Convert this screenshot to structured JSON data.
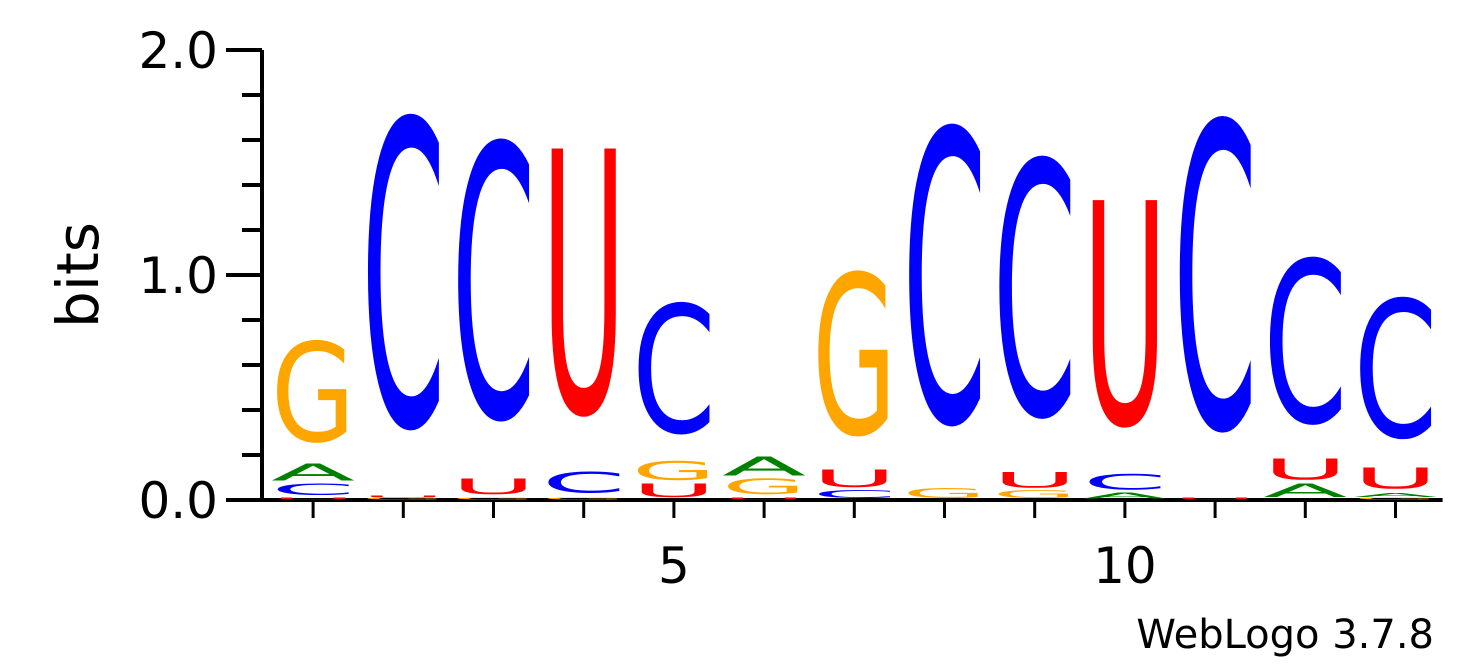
{
  "chart_data": {
    "type": "sequence_logo",
    "ylabel": "bits",
    "ylim": [
      0,
      2.0
    ],
    "y_ticks": [
      "0.0",
      "1.0",
      "2.0"
    ],
    "x_ticks": [
      {
        "position": 5,
        "label": "5"
      },
      {
        "position": 10,
        "label": "10"
      }
    ],
    "colors": {
      "A": "#008000",
      "C": "#0000ff",
      "G": "#ffa500",
      "U": "#ff0000"
    },
    "positions": [
      {
        "pos": 1,
        "stack": [
          {
            "l": "U",
            "h": 0.01
          },
          {
            "l": "C",
            "h": 0.06
          },
          {
            "l": "A",
            "h": 0.09
          },
          {
            "l": "G",
            "h": 0.52
          }
        ]
      },
      {
        "pos": 2,
        "stack": [
          {
            "l": "G",
            "h": 0.01
          },
          {
            "l": "U",
            "h": 0.01
          },
          {
            "l": "C",
            "h": 1.6
          }
        ]
      },
      {
        "pos": 3,
        "stack": [
          {
            "l": "G",
            "h": 0.01
          },
          {
            "l": "U",
            "h": 0.08
          },
          {
            "l": "C",
            "h": 1.43
          }
        ]
      },
      {
        "pos": 4,
        "stack": [
          {
            "l": "G",
            "h": 0.01
          },
          {
            "l": "C",
            "h": 0.11
          },
          {
            "l": "U",
            "h": 1.38
          }
        ]
      },
      {
        "pos": 5,
        "stack": [
          {
            "l": "U",
            "h": 0.07
          },
          {
            "l": "G",
            "h": 0.1
          },
          {
            "l": "C",
            "h": 0.67
          }
        ]
      },
      {
        "pos": 6,
        "stack": [
          {
            "l": "U",
            "h": 0.01
          },
          {
            "l": "G",
            "h": 0.08
          },
          {
            "l": "A",
            "h": 0.1
          }
        ]
      },
      {
        "pos": 7,
        "stack": [
          {
            "l": "C",
            "h": 0.04
          },
          {
            "l": "U",
            "h": 0.09
          },
          {
            "l": "G",
            "h": 0.84
          }
        ]
      },
      {
        "pos": 8,
        "stack": [
          {
            "l": "G",
            "h": 0.05
          },
          {
            "l": "C",
            "h": 1.53
          }
        ]
      },
      {
        "pos": 9,
        "stack": [
          {
            "l": "G",
            "h": 0.04
          },
          {
            "l": "U",
            "h": 0.08
          },
          {
            "l": "C",
            "h": 1.33
          }
        ]
      },
      {
        "pos": 10,
        "stack": [
          {
            "l": "A",
            "h": 0.03
          },
          {
            "l": "C",
            "h": 0.08
          },
          {
            "l": "U",
            "h": 1.17
          }
        ]
      },
      {
        "pos": 11,
        "stack": [
          {
            "l": "U",
            "h": 0.01
          },
          {
            "l": "C",
            "h": 1.6
          }
        ]
      },
      {
        "pos": 12,
        "stack": [
          {
            "l": "A",
            "h": 0.07
          },
          {
            "l": "U",
            "h": 0.11
          },
          {
            "l": "C",
            "h": 0.85
          }
        ]
      },
      {
        "pos": 13,
        "stack": [
          {
            "l": "G",
            "h": 0.01
          },
          {
            "l": "A",
            "h": 0.02
          },
          {
            "l": "U",
            "h": 0.11
          },
          {
            "l": "C",
            "h": 0.72
          }
        ]
      }
    ]
  },
  "credit": "WebLogo 3.7.8"
}
